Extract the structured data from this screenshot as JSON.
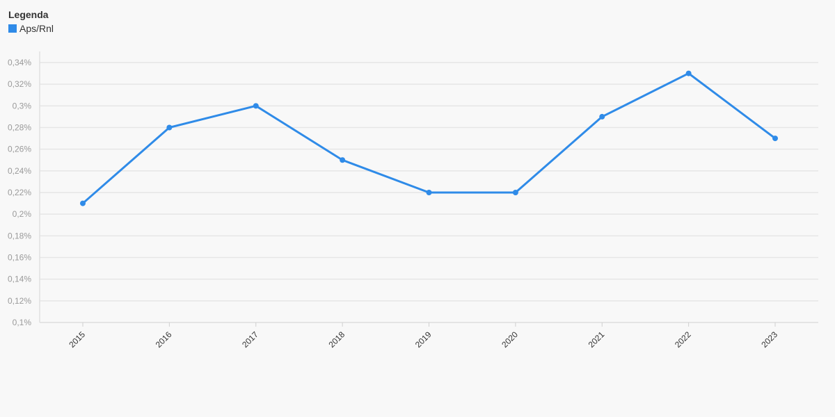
{
  "legend": {
    "title": "Legenda",
    "items": [
      {
        "label": "Aps/Rnl",
        "color": "#2f8be8"
      }
    ]
  },
  "chart_data": {
    "type": "line",
    "categories": [
      "2015",
      "2016",
      "2017",
      "2018",
      "2019",
      "2020",
      "2021",
      "2022",
      "2023"
    ],
    "series": [
      {
        "name": "Aps/Rnl",
        "color": "#2f8be8",
        "values": [
          0.21,
          0.28,
          0.3,
          0.25,
          0.22,
          0.22,
          0.29,
          0.33,
          0.27
        ]
      }
    ],
    "y_ticks": [
      "0,1%",
      "0,12%",
      "0,14%",
      "0,16%",
      "0,18%",
      "0,2%",
      "0,22%",
      "0,24%",
      "0,26%",
      "0,28%",
      "0,3%",
      "0,32%",
      "0,34%"
    ],
    "ylim": [
      0.1,
      0.34
    ],
    "y_unit": "%",
    "grid": true,
    "legend_position": "top-left"
  }
}
